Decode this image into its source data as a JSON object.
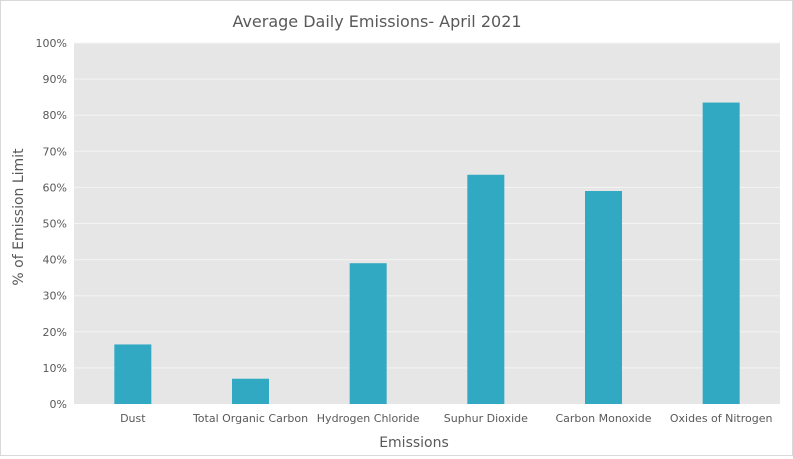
{
  "chart_data": {
    "type": "bar",
    "title": "Average Daily Emissions- April 2021",
    "xlabel": "Emissions",
    "ylabel": "% of Emission Limit",
    "categories": [
      "Dust",
      "Total Organic Carbon",
      "Hydrogen Chloride",
      "Suphur Dioxide",
      "Carbon  Monoxide",
      "Oxides of Nitrogen"
    ],
    "values": [
      16.5,
      7,
      39,
      63.5,
      59,
      83.5
    ],
    "ylim": [
      0,
      100
    ],
    "yticks": [
      "0%",
      "10%",
      "20%",
      "30%",
      "40%",
      "50%",
      "60%",
      "70%",
      "80%",
      "90%",
      "100%"
    ],
    "grid": true,
    "legend": "none",
    "colors": {
      "bar": "#31a9c3",
      "plot_background": "#e6e6e6",
      "gridline": "#f4f4f4",
      "text": "#595959"
    }
  }
}
